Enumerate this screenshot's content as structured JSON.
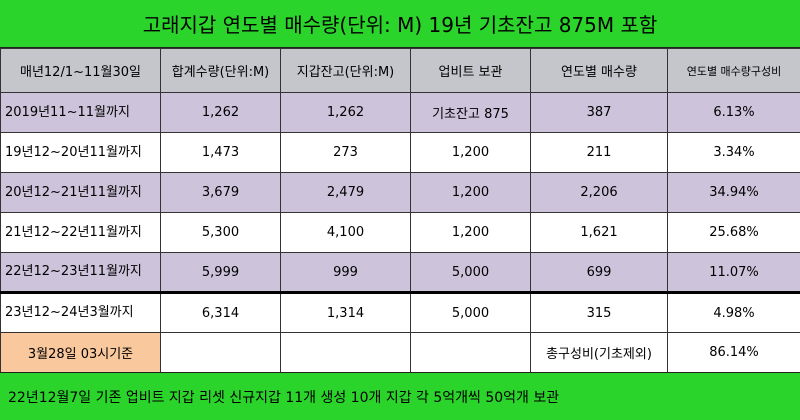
{
  "title": "고래지갑 연도별 매수량(단위: M)  19년 기초잔고 875M 포함",
  "headers": [
    "매년12/1~11월30일",
    "합계수량(단위:M)",
    "지갑잔고(단위:M)",
    "업비트 보관",
    "연도별 매수량",
    "연도별 매수량구성비"
  ],
  "rows": [
    {
      "period": "2019년11~11월까지",
      "total": "1,262",
      "wallet": "1,262",
      "upbit": "기초잔고 875",
      "yearly": "387",
      "ratio": "6.13%"
    },
    {
      "period": "19년12~20년11월까지",
      "total": "1,473",
      "wallet": "273",
      "upbit": "1,200",
      "yearly": "211",
      "ratio": "3.34%"
    },
    {
      "period": "20년12~21년11월까지",
      "total": "3,679",
      "wallet": "2,479",
      "upbit": "1,200",
      "yearly": "2,206",
      "ratio": "34.94%"
    },
    {
      "period": "21년12~22년11월까지",
      "total": "5,300",
      "wallet": "4,100",
      "upbit": "1,200",
      "yearly": "1,621",
      "ratio": "25.68%"
    },
    {
      "period": "22년12~23년11월까지",
      "total": "5,999",
      "wallet": "999",
      "upbit": "5,000",
      "yearly": "699",
      "ratio": "11.07%"
    },
    {
      "period": "23년12~24년3월까지",
      "total": "6,314",
      "wallet": "1,314",
      "upbit": "5,000",
      "yearly": "315",
      "ratio": "4.98%"
    }
  ],
  "summary": {
    "note": "3월28일 03시기준",
    "label": "총구성비(기초제외)",
    "value": "86.14%"
  },
  "footer": "22년12월7일 기존 업비트 지갑 리셋  신규지갑 11개 생성  10개 지갑 각 5억개씩 50억개 보관",
  "colors": {
    "green": "#2bd42b",
    "header_gray": "#c5c6cc",
    "row_purple": "#cdc4dc",
    "note_orange": "#f9c89c"
  }
}
